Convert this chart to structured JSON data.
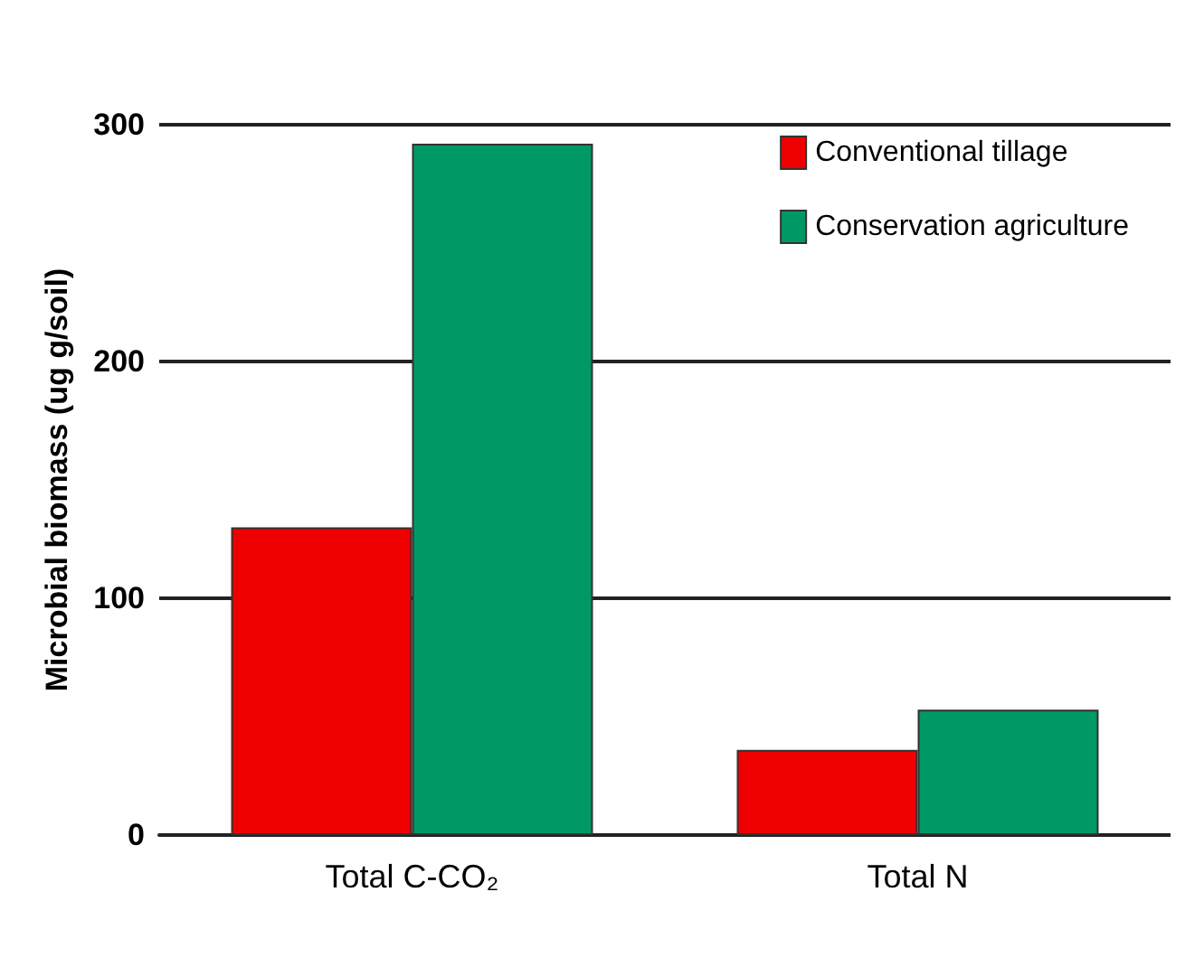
{
  "chart_data": {
    "type": "bar",
    "ylabel": "Microbial biomass (ug g/soil)",
    "categories": [
      "Total C-CO₂",
      "Total N"
    ],
    "series": [
      {
        "name": "Conventional tillage",
        "color": "#ee0000",
        "values": [
          130,
          36
        ]
      },
      {
        "name": "Conservation agriculture",
        "color": "#009966",
        "values": [
          292,
          53
        ]
      }
    ],
    "ylim": [
      0,
      300
    ],
    "yticks": [
      0,
      100,
      200,
      300
    ],
    "grid": "y",
    "legend": "top right"
  }
}
